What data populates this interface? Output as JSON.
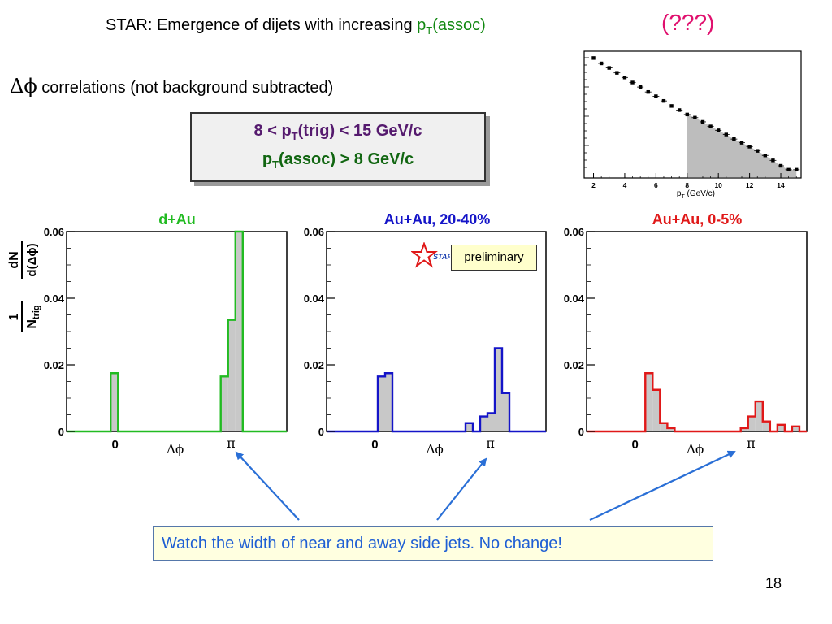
{
  "slide": {
    "title_main": "STAR: Emergence of dijets with increasing ",
    "title_pt": "p",
    "title_pt_sub": "T",
    "title_assoc": "(assoc)",
    "question": "(???)",
    "dphi_symbol": "Δϕ",
    "dphi_text": " correlations (not background subtracted)",
    "box_line1_pre": "8 < p",
    "box_line1_sub": "T",
    "box_line1_post": "(trig) < 15 GeV/c",
    "box_line2_pre": "p",
    "box_line2_sub": "T",
    "box_line2_post": "(assoc) > 8 GeV/c",
    "preliminary": "preliminary",
    "star_logo_text": "STAR",
    "watch_text": "Watch the width of near and away side jets. No change!",
    "page_number": "18",
    "colors": {
      "green": "#22bb22",
      "blue": "#1414c8",
      "red": "#e01818",
      "arrow": "#2a6fd6",
      "fill": "#c8c8c8"
    }
  },
  "chart_data": [
    {
      "type": "scatter",
      "title": "",
      "xlabel": "p_T (GeV/c)",
      "ylabel": "",
      "xlim": [
        1.4,
        15.3
      ],
      "x_ticks": [
        "2",
        "4",
        "6",
        "8",
        "10",
        "12",
        "14"
      ],
      "log_y": true,
      "shaded_region": [
        8,
        15
      ],
      "points": {
        "x": [
          2.0,
          2.5,
          3.0,
          3.5,
          4.0,
          4.5,
          5.0,
          5.5,
          6.0,
          6.5,
          7.0,
          7.5,
          8.0,
          8.5,
          9.0,
          9.5,
          10.0,
          10.5,
          11.0,
          11.5,
          12.0,
          12.5,
          13.0,
          13.5,
          14.0,
          14.5,
          15.0
        ],
        "y_rel": [
          1.0,
          0.91,
          0.84,
          0.77,
          0.71,
          0.65,
          0.6,
          0.55,
          0.51,
          0.47,
          0.43,
          0.4,
          0.37,
          0.35,
          0.325,
          0.3,
          0.28,
          0.26,
          0.24,
          0.225,
          0.21,
          0.195,
          0.18,
          0.165,
          0.15,
          0.14,
          0.14
        ]
      }
    },
    {
      "type": "bar",
      "title": "d+Au",
      "xlabel": "Δϕ",
      "ylabel_parts": {
        "one": "1",
        "ntrig": "N",
        "ntrig_sub": "trig",
        "dn": "dN",
        "dphi": "d(Δϕ)"
      },
      "x_ticks": [
        "0",
        "π"
      ],
      "ylim": [
        0,
        0.06
      ],
      "y_ticks": [
        "0",
        "0.02",
        "0.04",
        "0.06"
      ],
      "bin_count": 30,
      "values": [
        0,
        0,
        0,
        0,
        0,
        0,
        0.0175,
        0,
        0,
        0,
        0,
        0,
        0,
        0,
        0,
        0,
        0,
        0,
        0,
        0,
        0,
        0.0165,
        0.0335,
        0.06,
        0,
        0,
        0,
        0,
        0,
        0
      ],
      "color": "green"
    },
    {
      "type": "bar",
      "title": "Au+Au, 20-40%",
      "xlabel": "Δϕ",
      "x_ticks": [
        "0",
        "π"
      ],
      "ylim": [
        0,
        0.06
      ],
      "y_ticks": [
        "0",
        "0.02",
        "0.04",
        "0.06"
      ],
      "bin_count": 30,
      "values": [
        0,
        0,
        0,
        0,
        0,
        0,
        0,
        0.0165,
        0.0175,
        0,
        0,
        0,
        0,
        0,
        0,
        0,
        0,
        0,
        0,
        0.0025,
        0,
        0.0045,
        0.0055,
        0.025,
        0.0115,
        0,
        0,
        0,
        0,
        0
      ],
      "color": "blue"
    },
    {
      "type": "bar",
      "title": "Au+Au, 0-5%",
      "xlabel": "Δϕ",
      "x_ticks": [
        "0",
        "π"
      ],
      "ylim": [
        0,
        0.06
      ],
      "y_ticks": [
        "0",
        "0.02",
        "0.04",
        "0.06"
      ],
      "bin_count": 30,
      "values": [
        0,
        0,
        0,
        0,
        0,
        0,
        0,
        0,
        0.0175,
        0.0125,
        0.0025,
        0.001,
        0,
        0,
        0,
        0,
        0,
        0,
        0,
        0,
        0,
        0.001,
        0.0045,
        0.009,
        0.003,
        0,
        0.002,
        0,
        0.0015,
        0
      ],
      "color": "red"
    }
  ]
}
